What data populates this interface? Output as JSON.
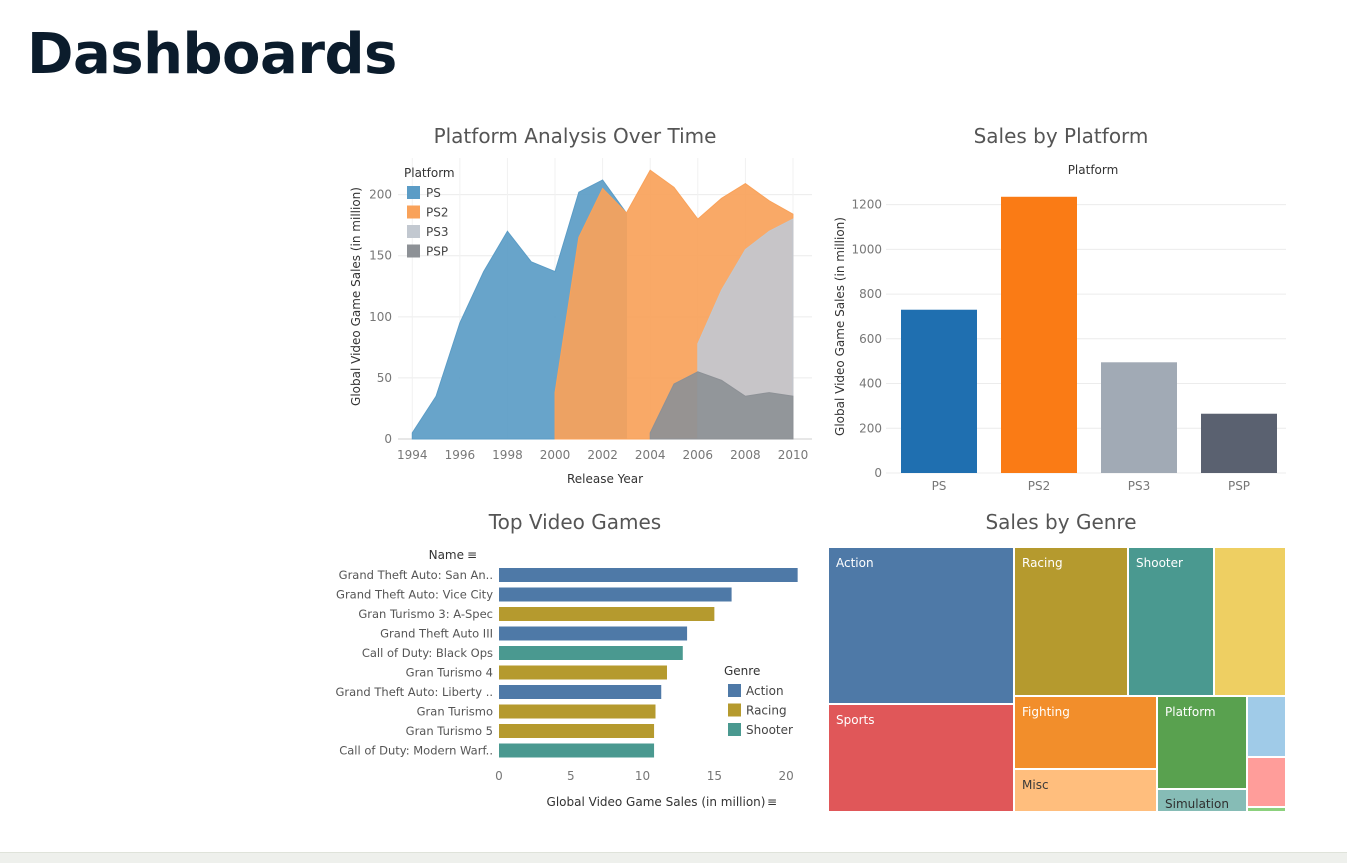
{
  "page": {
    "title": "Dashboards"
  },
  "colors": {
    "ps": "#5b9cc6",
    "ps2": "#f9a25a",
    "ps3": "#c2c8d0",
    "psp": "#8d9196",
    "ps_bar": "#1f6fb0",
    "ps2_bar": "#fa7b15",
    "ps3_bar": "#a1aab5",
    "psp_bar": "#5a6170",
    "action": "#4e79a7",
    "racing": "#b59a2e",
    "shooter": "#4a9990",
    "sports": "#e05759",
    "fighting": "#f28e2b",
    "misc": "#ffbe7d",
    "platform": "#59a14f",
    "simulation": "#86bcb6",
    "yellow": "#eecf62",
    "lightblue": "#a0cbe8",
    "pink": "#ff9d9a",
    "lightgreen": "#8cd17d"
  },
  "chart_data": [
    {
      "type": "area",
      "title": "Platform Analysis Over Time",
      "xlabel": "Release Year",
      "ylabel": "Global Video Game Sales (in million)",
      "legend_title": "Platform",
      "legend_position": "top-left",
      "grid": true,
      "ylim": [
        0,
        230
      ],
      "xlim": [
        1993.4,
        2010.8
      ],
      "x_ticks": [
        "1994",
        "1996",
        "1998",
        "2000",
        "2002",
        "2004",
        "2006",
        "2008",
        "2010"
      ],
      "y_ticks": [
        "0",
        "50",
        "100",
        "150",
        "200"
      ],
      "series": [
        {
          "name": "PS",
          "color_key": "ps",
          "x": [
            1994,
            1995,
            1996,
            1997,
            1998,
            1999,
            2000,
            2001,
            2002,
            2003
          ],
          "values": [
            5,
            35,
            95,
            137,
            170,
            145,
            137,
            202,
            212,
            185
          ]
        },
        {
          "name": "PS2",
          "color_key": "ps2",
          "x": [
            2000,
            2001,
            2002,
            2003,
            2004,
            2005,
            2006,
            2007,
            2008,
            2009,
            2010
          ],
          "values": [
            38,
            165,
            205,
            185,
            220,
            206,
            180,
            197,
            209,
            195,
            184
          ]
        },
        {
          "name": "PS3",
          "color_key": "ps3",
          "x": [
            2006,
            2007,
            2008,
            2009,
            2010
          ],
          "values": [
            78,
            122,
            155,
            170,
            180
          ]
        },
        {
          "name": "PSP",
          "color_key": "psp",
          "x": [
            2004,
            2005,
            2006,
            2007,
            2008,
            2009,
            2010
          ],
          "values": [
            5,
            45,
            55,
            48,
            35,
            38,
            35
          ]
        }
      ]
    },
    {
      "type": "bar",
      "title": "Sales by Platform",
      "legend_title": "Platform",
      "ylabel": "Global Video Game Sales (in million)",
      "categories": [
        "PS",
        "PS2",
        "PS3",
        "PSP"
      ],
      "values": [
        730,
        1235,
        495,
        265
      ],
      "color_keys": [
        "ps_bar",
        "ps2_bar",
        "ps3_bar",
        "psp_bar"
      ],
      "ylim": [
        0,
        1310
      ],
      "y_ticks": [
        "0",
        "200",
        "400",
        "600",
        "800",
        "1000",
        "1200"
      ],
      "grid": true
    },
    {
      "type": "bar",
      "orientation": "horizontal",
      "title": "Top Video Games",
      "category_header": "Name",
      "xlabel": "Global Video Game Sales (in million)",
      "legend_title": "Genre",
      "legend_position": "right",
      "xlim": [
        0,
        21.8
      ],
      "x_ticks": [
        "0",
        "5",
        "10",
        "15",
        "20"
      ],
      "categories": [
        "Grand Theft Auto: San An..",
        "Grand Theft Auto: Vice City",
        "Gran Turismo 3: A-Spec",
        "Grand Theft Auto III",
        "Call of Duty: Black Ops",
        "Gran Turismo 4",
        "Grand Theft Auto: Liberty ..",
        "Gran Turismo",
        "Gran Turismo 5",
        "Call of Duty: Modern Warf.."
      ],
      "values": [
        20.8,
        16.2,
        15.0,
        13.1,
        12.8,
        11.7,
        11.3,
        10.9,
        10.8,
        10.8
      ],
      "genres": [
        "Action",
        "Action",
        "Racing",
        "Action",
        "Shooter",
        "Racing",
        "Action",
        "Racing",
        "Racing",
        "Shooter"
      ],
      "legend": [
        {
          "name": "Action",
          "color_key": "action"
        },
        {
          "name": "Racing",
          "color_key": "racing"
        },
        {
          "name": "Shooter",
          "color_key": "shooter"
        }
      ]
    },
    {
      "type": "treemap",
      "title": "Sales by Genre",
      "labels": [
        "Action",
        "Sports",
        "Racing",
        "Shooter",
        "Fighting",
        "Misc",
        "Platform",
        "Simulation"
      ]
    }
  ]
}
